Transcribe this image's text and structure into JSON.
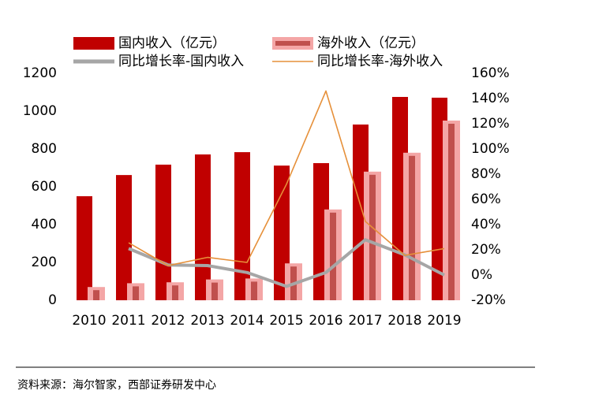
{
  "chart_data": {
    "type": "bar",
    "categories": [
      "2010",
      "2011",
      "2012",
      "2013",
      "2014",
      "2015",
      "2016",
      "2017",
      "2018",
      "2019"
    ],
    "series": [
      {
        "name": "国内收入（亿元）",
        "type": "bar",
        "color": "#c00000",
        "values": [
          550,
          662,
          717,
          771,
          783,
          712,
          725,
          929,
          1075,
          1071
        ]
      },
      {
        "name": "海外收入（亿元）",
        "type": "bar",
        "color": "#f4a6a6",
        "inner_color": "#c0504d",
        "values": [
          70,
          90,
          95,
          110,
          115,
          195,
          480,
          680,
          780,
          950
        ]
      },
      {
        "name": "同比增长率-国内收入",
        "type": "line",
        "axis": "y2",
        "color": "#a6a6a6",
        "values": [
          null,
          21,
          8,
          7.5,
          2,
          -9,
          2,
          28,
          16,
          0
        ]
      },
      {
        "name": "同比增长率-海外收入",
        "type": "line",
        "axis": "y2",
        "color": "#e6903a",
        "values": [
          null,
          25.6,
          7.5,
          14,
          10,
          72,
          146,
          42.5,
          15.6,
          21
        ]
      }
    ],
    "ylim": [
      0,
      1200
    ],
    "yticks": [
      0,
      200,
      400,
      600,
      800,
      1000,
      1200
    ],
    "y2lim": [
      -20,
      160
    ],
    "y2ticks": [
      {
        "value": -20,
        "label": "-20%"
      },
      {
        "value": 0,
        "label": "0%"
      },
      {
        "value": 20,
        "label": "20%"
      },
      {
        "value": 40,
        "label": "40%"
      },
      {
        "value": 60,
        "label": "60%"
      },
      {
        "value": 80,
        "label": "80%"
      },
      {
        "value": 100,
        "label": "100%"
      },
      {
        "value": 120,
        "label": "120%"
      },
      {
        "value": 140,
        "label": "140%"
      },
      {
        "value": 160,
        "label": "160%"
      }
    ],
    "grid": false,
    "source": "资料来源：海尔智家，西部证券研发中心"
  }
}
